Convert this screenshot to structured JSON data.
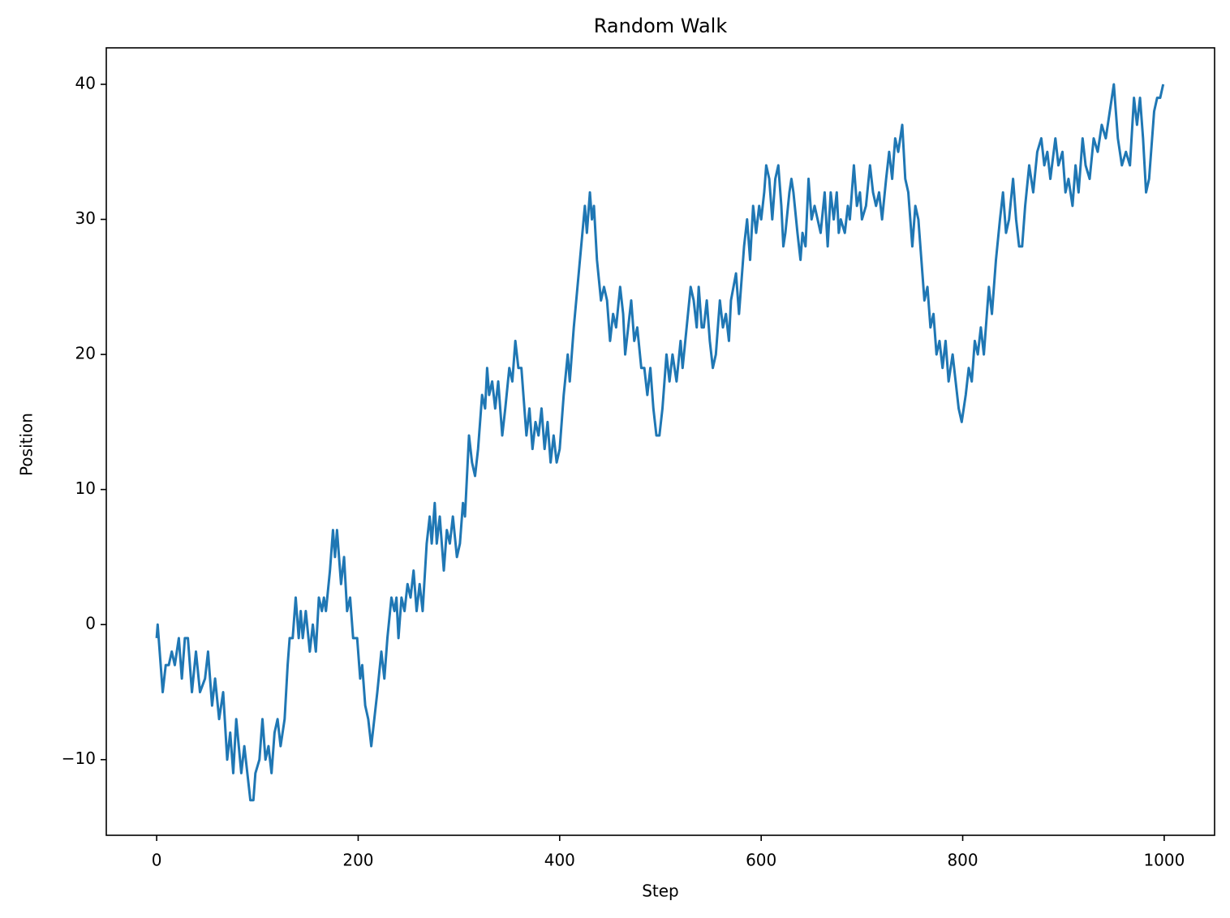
{
  "chart_data": {
    "type": "line",
    "title": "Random Walk",
    "x_label": "Step",
    "y_label": "Position",
    "xlim": [
      -50,
      1050
    ],
    "ylim": [
      -15.6,
      42.7
    ],
    "xticks": [
      0,
      200,
      400,
      600,
      800,
      1000
    ],
    "yticks": [
      {
        "value": -10,
        "label": "−10"
      },
      0,
      10,
      20,
      30,
      40
    ],
    "grid": false,
    "x": [
      0,
      1,
      6,
      9,
      12,
      15,
      18,
      22,
      25,
      28,
      31,
      35,
      39,
      43,
      48,
      51,
      55,
      58,
      62,
      66,
      70,
      73,
      76,
      79,
      84,
      87,
      90,
      93,
      96,
      98,
      102,
      105,
      108,
      111,
      114,
      117,
      120,
      123,
      127,
      130,
      132,
      135,
      138,
      141,
      143,
      145,
      148,
      152,
      155,
      158,
      161,
      164,
      166,
      168,
      172,
      175,
      177,
      179,
      183,
      186,
      189,
      192,
      195,
      199,
      202,
      204,
      207,
      210,
      213,
      216,
      219,
      223,
      226,
      229,
      233,
      236,
      238,
      240,
      243,
      246,
      249,
      252,
      255,
      258,
      261,
      264,
      268,
      271,
      273,
      276,
      278,
      281,
      285,
      288,
      291,
      294,
      298,
      301,
      304,
      306,
      310,
      313,
      316,
      319,
      323,
      326,
      328,
      330,
      333,
      336,
      339,
      343,
      346,
      350,
      353,
      356,
      359,
      362,
      367,
      370,
      373,
      376,
      379,
      382,
      385,
      388,
      391,
      394,
      397,
      400,
      404,
      408,
      410,
      414,
      425,
      427,
      430,
      432,
      434,
      437,
      441,
      444,
      447,
      450,
      453,
      456,
      460,
      463,
      465,
      468,
      471,
      474,
      477,
      481,
      484,
      487,
      490,
      493,
      496,
      499,
      502,
      506,
      509,
      512,
      516,
      520,
      522,
      526,
      530,
      533,
      536,
      538,
      541,
      543,
      546,
      549,
      552,
      555,
      559,
      562,
      565,
      568,
      570,
      575,
      578,
      583,
      586,
      589,
      592,
      595,
      598,
      600,
      603,
      605,
      608,
      611,
      614,
      617,
      620,
      622,
      624,
      628,
      630,
      632,
      636,
      639,
      641,
      644,
      647,
      650,
      653,
      656,
      659,
      663,
      666,
      669,
      672,
      675,
      677,
      679,
      683,
      686,
      688,
      692,
      695,
      698,
      700,
      704,
      708,
      711,
      714,
      717,
      720,
      724,
      727,
      730,
      733,
      736,
      740,
      743,
      746,
      750,
      753,
      756,
      759,
      762,
      765,
      768,
      771,
      774,
      777,
      780,
      783,
      786,
      790,
      793,
      796,
      799,
      803,
      806,
      809,
      812,
      815,
      818,
      821,
      826,
      829,
      833,
      837,
      840,
      843,
      846,
      850,
      853,
      856,
      859,
      862,
      866,
      870,
      874,
      878,
      881,
      884,
      887,
      892,
      895,
      899,
      902,
      905,
      909,
      912,
      915,
      919,
      922,
      926,
      930,
      934,
      938,
      942,
      946,
      950,
      954,
      958,
      962,
      966,
      970,
      973,
      976,
      979,
      982,
      985,
      990,
      993,
      996,
      999
    ],
    "series": [
      {
        "name": "Position",
        "color": "#1f77b4",
        "values": [
          -1,
          0,
          -5,
          -3,
          -3,
          -2,
          -3,
          -1,
          -4,
          -1,
          -1,
          -5,
          -2,
          -5,
          -4,
          -2,
          -6,
          -4,
          -7,
          -5,
          -10,
          -8,
          -11,
          -7,
          -11,
          -9,
          -11,
          -13,
          -13,
          -11,
          -10,
          -7,
          -10,
          -9,
          -11,
          -8,
          -7,
          -9,
          -7,
          -3,
          -1,
          -1,
          2,
          -1,
          1,
          -1,
          1,
          -2,
          0,
          -2,
          2,
          1,
          2,
          1,
          4,
          7,
          5,
          7,
          3,
          5,
          1,
          2,
          -1,
          -1,
          -4,
          -3,
          -6,
          -7,
          -9,
          -7,
          -5,
          -2,
          -4,
          -1,
          2,
          1,
          2,
          -1,
          2,
          1,
          3,
          2,
          4,
          1,
          3,
          1,
          6,
          8,
          6,
          9,
          6,
          8,
          4,
          7,
          6,
          8,
          5,
          6,
          9,
          8,
          14,
          12,
          11,
          13,
          17,
          16,
          19,
          17,
          18,
          16,
          18,
          14,
          16,
          19,
          18,
          21,
          19,
          19,
          14,
          16,
          13,
          15,
          14,
          16,
          13,
          15,
          12,
          14,
          12,
          13,
          17,
          20,
          18,
          22,
          31,
          29,
          32,
          30,
          31,
          27,
          24,
          25,
          24,
          21,
          23,
          22,
          25,
          23,
          20,
          22,
          24,
          21,
          22,
          19,
          19,
          17,
          19,
          16,
          14,
          14,
          16,
          20,
          18,
          20,
          18,
          21,
          19,
          22,
          25,
          24,
          22,
          25,
          22,
          22,
          24,
          21,
          19,
          20,
          24,
          22,
          23,
          21,
          24,
          26,
          23,
          28,
          30,
          27,
          31,
          29,
          31,
          30,
          32,
          34,
          33,
          30,
          33,
          34,
          31,
          28,
          29,
          32,
          33,
          32,
          29,
          27,
          29,
          28,
          33,
          30,
          31,
          30,
          29,
          32,
          28,
          32,
          30,
          32,
          29,
          30,
          29,
          31,
          30,
          34,
          31,
          32,
          30,
          31,
          34,
          32,
          31,
          32,
          30,
          33,
          35,
          33,
          36,
          35,
          37,
          33,
          32,
          28,
          31,
          30,
          27,
          24,
          25,
          22,
          23,
          20,
          21,
          19,
          21,
          18,
          20,
          18,
          16,
          15,
          17,
          19,
          18,
          21,
          20,
          22,
          20,
          25,
          23,
          27,
          30,
          32,
          29,
          30,
          33,
          30,
          28,
          28,
          31,
          34,
          32,
          35,
          36,
          34,
          35,
          33,
          36,
          34,
          35,
          32,
          33,
          31,
          34,
          32,
          36,
          34,
          33,
          36,
          35,
          37,
          36,
          38,
          40,
          36,
          34,
          35,
          34,
          39,
          37,
          39,
          36,
          32,
          33,
          38,
          39,
          39,
          40
        ]
      }
    ]
  }
}
